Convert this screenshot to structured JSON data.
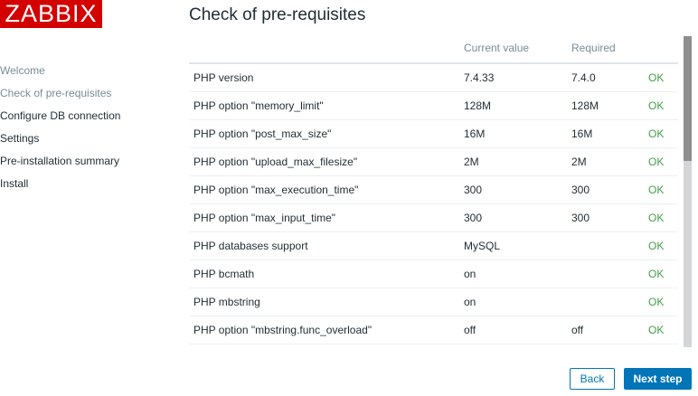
{
  "logo": "ZABBIX",
  "sidebar": {
    "items": [
      {
        "label": "Welcome",
        "state": "done"
      },
      {
        "label": "Check of pre-requisites",
        "state": "done"
      },
      {
        "label": "Configure DB connection",
        "state": "pending"
      },
      {
        "label": "Settings",
        "state": "pending"
      },
      {
        "label": "Pre-installation summary",
        "state": "pending"
      },
      {
        "label": "Install",
        "state": "pending"
      }
    ]
  },
  "title": "Check of pre-requisites",
  "table": {
    "headers": [
      "",
      "Current value",
      "Required",
      ""
    ],
    "rows": [
      [
        "PHP version",
        "7.4.33",
        "7.4.0",
        "OK"
      ],
      [
        "PHP option \"memory_limit\"",
        "128M",
        "128M",
        "OK"
      ],
      [
        "PHP option \"post_max_size\"",
        "16M",
        "16M",
        "OK"
      ],
      [
        "PHP option \"upload_max_filesize\"",
        "2M",
        "2M",
        "OK"
      ],
      [
        "PHP option \"max_execution_time\"",
        "300",
        "300",
        "OK"
      ],
      [
        "PHP option \"max_input_time\"",
        "300",
        "300",
        "OK"
      ],
      [
        "PHP databases support",
        "MySQL",
        "",
        "OK"
      ],
      [
        "PHP bcmath",
        "on",
        "",
        "OK"
      ],
      [
        "PHP mbstring",
        "on",
        "",
        "OK"
      ],
      [
        "PHP option \"mbstring.func_overload\"",
        "off",
        "off",
        "OK"
      ]
    ]
  },
  "buttons": {
    "back": "Back",
    "next": "Next step"
  },
  "colors": {
    "brand": "#d40000",
    "ok": "#429e47",
    "accent": "#0275b8"
  }
}
